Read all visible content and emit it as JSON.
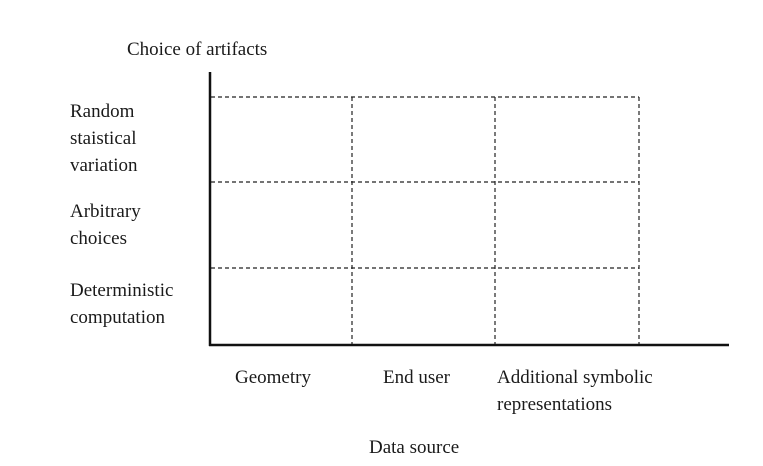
{
  "y_axis_title": "Choice of artifacts",
  "x_axis_title": "Data source",
  "rows": [
    {
      "lines": [
        "Random",
        "staistical",
        "variation"
      ]
    },
    {
      "lines": [
        "Arbitrary",
        "choices"
      ]
    },
    {
      "lines": [
        "Deterministic",
        "computation"
      ]
    }
  ],
  "columns": [
    {
      "lines": [
        "Geometry"
      ]
    },
    {
      "lines": [
        "End user"
      ]
    },
    {
      "lines": [
        "Additional symbolic",
        "representations"
      ]
    }
  ]
}
